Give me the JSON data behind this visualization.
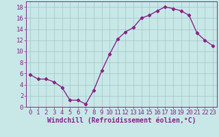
{
  "x": [
    0,
    1,
    2,
    3,
    4,
    5,
    6,
    7,
    8,
    9,
    10,
    11,
    12,
    13,
    14,
    15,
    16,
    17,
    18,
    19,
    20,
    21,
    22,
    23
  ],
  "y": [
    5.8,
    5.0,
    5.0,
    4.5,
    3.5,
    1.2,
    1.2,
    0.5,
    3.0,
    6.5,
    9.5,
    12.2,
    13.5,
    14.3,
    16.0,
    16.5,
    17.3,
    18.0,
    17.7,
    17.3,
    16.5,
    13.3,
    12.0,
    11.0
  ],
  "line_color": "#882288",
  "marker": "D",
  "marker_size": 2.2,
  "background_color": "#c8e8e8",
  "grid_color": "#a0c4c4",
  "xlabel": "Windchill (Refroidissement éolien,°C)",
  "xlim": [
    -0.5,
    23.5
  ],
  "ylim": [
    0,
    19
  ],
  "yticks": [
    0,
    2,
    4,
    6,
    8,
    10,
    12,
    14,
    16,
    18
  ],
  "xticks": [
    0,
    1,
    2,
    3,
    4,
    5,
    6,
    7,
    8,
    9,
    10,
    11,
    12,
    13,
    14,
    15,
    16,
    17,
    18,
    19,
    20,
    21,
    22,
    23
  ],
  "tick_color": "#882288",
  "label_color": "#882288",
  "font_size": 6.5,
  "xlabel_fontsize": 7.0,
  "linewidth": 1.0
}
